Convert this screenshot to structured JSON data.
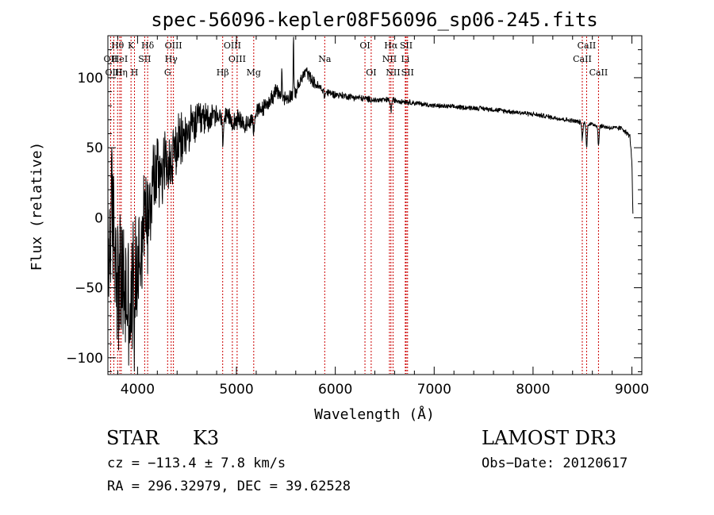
{
  "chart_data": {
    "type": "line",
    "title": "spec-56096-kepler08F56096_sp06-245.fits",
    "xlabel": "Wavelength (Å)",
    "ylabel": "Flux (relative)",
    "xlim": [
      3700,
      9100
    ],
    "ylim": [
      -112,
      130
    ],
    "x_ticks": [
      4000,
      5000,
      6000,
      7000,
      8000,
      9000
    ],
    "x_tick_labels": [
      "4000",
      "5000",
      "6000",
      "7000",
      "8000",
      "9000"
    ],
    "y_ticks": [
      -100,
      -50,
      0,
      50,
      100
    ],
    "y_tick_labels": [
      "−100",
      "−50",
      "0",
      "50",
      "100"
    ],
    "spectrum_anchors": {
      "x": [
        3700,
        3750,
        3800,
        3900,
        4000,
        4100,
        4200,
        4300,
        4400,
        4500,
        4600,
        4700,
        4800,
        4900,
        5000,
        5100,
        5200,
        5300,
        5400,
        5500,
        5600,
        5700,
        5750,
        5800,
        5900,
        6000,
        6200,
        6400,
        6600,
        6800,
        7000,
        7500,
        8000,
        8500,
        8800,
        8900,
        8980,
        9000,
        9010
      ],
      "y": [
        -30,
        5,
        -40,
        -60,
        -35,
        15,
        35,
        40,
        50,
        60,
        68,
        72,
        72,
        70,
        70,
        66,
        75,
        80,
        90,
        85,
        90,
        105,
        100,
        95,
        90,
        88,
        86,
        84,
        84,
        82,
        80,
        78,
        74,
        68,
        64,
        64,
        58,
        40,
        2
      ]
    },
    "spectrum_noise_profile": {
      "x": [
        3700,
        3900,
        4100,
        4300,
        4500,
        4800,
        5200,
        5600,
        6000,
        7000,
        8000,
        9000
      ],
      "amplitude": [
        70,
        60,
        45,
        30,
        20,
        10,
        7,
        6,
        3,
        2,
        2,
        2
      ]
    },
    "absorption_features": [
      {
        "x": 3933,
        "depth": 25
      },
      {
        "x": 3968,
        "depth": 20
      },
      {
        "x": 4102,
        "depth": 18
      },
      {
        "x": 4340,
        "depth": 12
      },
      {
        "x": 4861,
        "depth": 15
      },
      {
        "x": 5175,
        "depth": 10
      },
      {
        "x": 5893,
        "depth": 4
      },
      {
        "x": 6563,
        "depth": 8
      },
      {
        "x": 8498,
        "depth": 12
      },
      {
        "x": 8542,
        "depth": 18
      },
      {
        "x": 8662,
        "depth": 14
      }
    ],
    "emission_spikes": [
      {
        "x": 5577,
        "height": 45
      },
      {
        "x": 5460,
        "height": 20
      }
    ],
    "line_markers": [
      {
        "label": "Hθ",
        "x": 3798,
        "row": 0
      },
      {
        "label": "OII",
        "x": 3727,
        "row": 1
      },
      {
        "label": "OIII",
        "x": 3760,
        "row": 2
      },
      {
        "label": "HeI",
        "x": 3820,
        "row": 1
      },
      {
        "label": "Hη",
        "x": 3835,
        "row": 2
      },
      {
        "label": "K",
        "x": 3934,
        "row": 0
      },
      {
        "label": "SII",
        "x": 4072,
        "row": 1
      },
      {
        "label": "H",
        "x": 3969,
        "row": 2
      },
      {
        "label": "Hδ",
        "x": 4102,
        "row": 0
      },
      {
        "label": "OIII",
        "x": 4363,
        "row": 0
      },
      {
        "label": "Hγ",
        "x": 4340,
        "row": 1
      },
      {
        "label": "G",
        "x": 4304,
        "row": 2
      },
      {
        "label": "OIII",
        "x": 4959,
        "row": 0
      },
      {
        "label": "OIII",
        "x": 5007,
        "row": 1
      },
      {
        "label": "Hβ",
        "x": 4861,
        "row": 2
      },
      {
        "label": "Mg",
        "x": 5175,
        "row": 2
      },
      {
        "label": "Na",
        "x": 5893,
        "row": 1
      },
      {
        "label": "OI",
        "x": 6300,
        "row": 0
      },
      {
        "label": "OI",
        "x": 6363,
        "row": 2
      },
      {
        "label": "Hα",
        "x": 6563,
        "row": 0
      },
      {
        "label": "NII",
        "x": 6548,
        "row": 1
      },
      {
        "label": "NII",
        "x": 6584,
        "row": 2
      },
      {
        "label": "SII",
        "x": 6717,
        "row": 0
      },
      {
        "label": "Li",
        "x": 6708,
        "row": 1
      },
      {
        "label": "SII",
        "x": 6731,
        "row": 2
      },
      {
        "label": "CaII",
        "x": 8542,
        "row": 0
      },
      {
        "label": "CaII",
        "x": 8498,
        "row": 1
      },
      {
        "label": "CaII",
        "x": 8662,
        "row": 2
      }
    ],
    "marker_color": "#cc0000",
    "line_color": "#000000"
  },
  "info": {
    "object_class": "STAR",
    "subclass": "K3",
    "survey": "LAMOST DR3",
    "cz_text": "cz = −113.4 ± 7.8 km/s",
    "obs_date_text": "Obs−Date: 20120617",
    "radec_text": "RA = 296.32979, DEC =  39.62528"
  }
}
